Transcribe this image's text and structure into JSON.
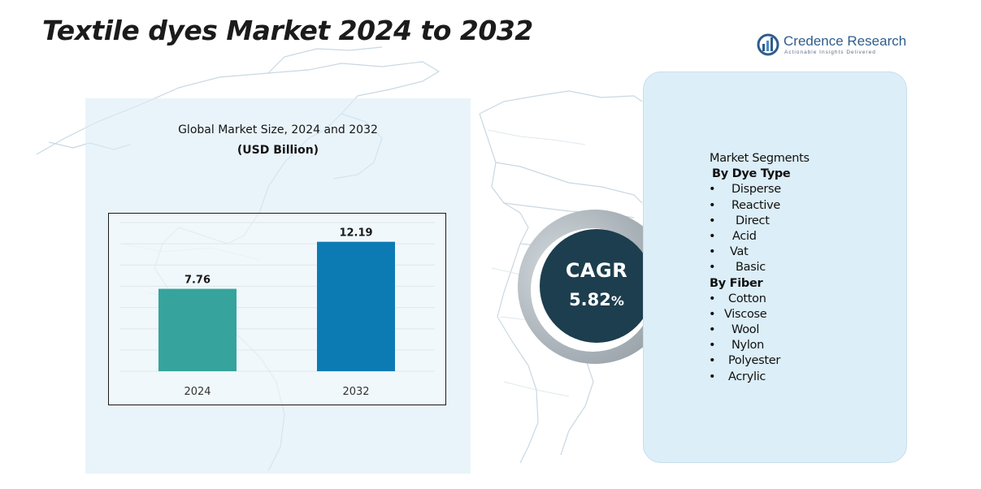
{
  "header": {
    "title": "Textile dyes Market 2024 to 2032"
  },
  "logo": {
    "name": "Credence Research",
    "tagline": "Actionable Insights Delivered"
  },
  "chart_data": {
    "type": "bar",
    "title": "Global Market Size, 2024 and 2032",
    "subtitle": "(USD Billion)",
    "categories": [
      "2024",
      "2032"
    ],
    "values": [
      7.76,
      12.19
    ],
    "data_labels": [
      "7.76",
      "12.19"
    ],
    "colors": [
      "#36a39d",
      "#0d7bb3"
    ],
    "ylim": [
      0,
      14
    ],
    "grid": true,
    "legend": "none"
  },
  "cagr": {
    "label": "CAGR",
    "value": "5.82",
    "unit": "%"
  },
  "segments": {
    "heading": "Market Segments",
    "groups": [
      {
        "title": "By Dye Type",
        "items": [
          "Disperse",
          "Reactive",
          "Direct",
          "Acid",
          "Vat",
          "Basic"
        ]
      },
      {
        "title": "By Fiber",
        "items": [
          "Cotton",
          "Viscose",
          "Wool",
          "Nylon",
          "Polyester",
          "Acrylic"
        ]
      }
    ]
  },
  "colors": {
    "panel_bg": "#daedf6",
    "cagr_circle": "#1d3e4e",
    "segment_box": "#dceef7",
    "map_outline": "#c9d8e2"
  }
}
